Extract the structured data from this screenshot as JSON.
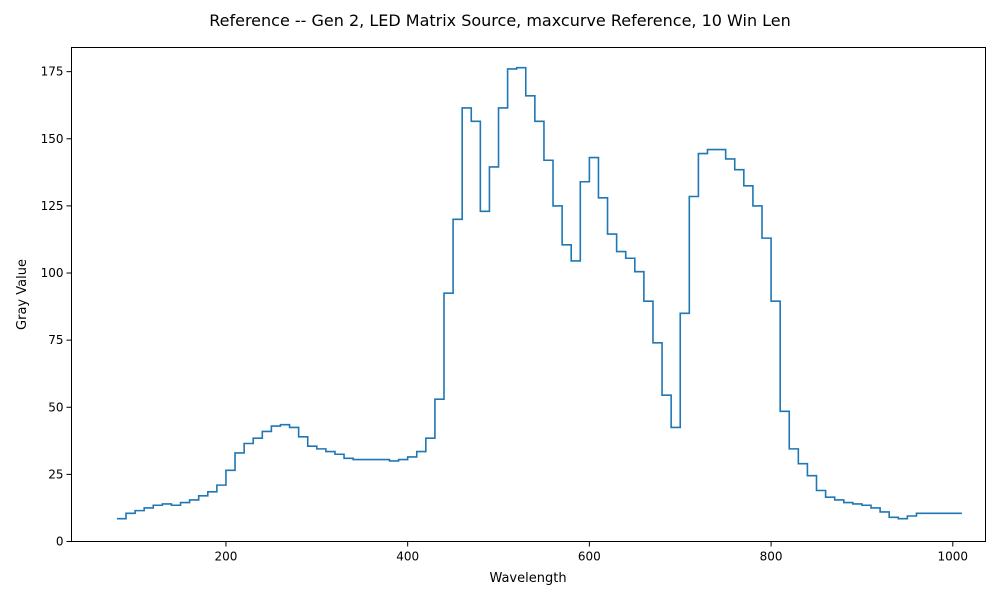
{
  "chart_data": {
    "type": "line",
    "step": "post",
    "title": "Reference -- Gen 2, LED Matrix Source, maxcurve Reference, 10 Win Len",
    "xlabel": "Wavelength",
    "ylabel": "Gray Value",
    "xlim": [
      30,
      1036
    ],
    "ylim": [
      0,
      184
    ],
    "xticks": [
      200,
      400,
      600,
      800,
      1000
    ],
    "yticks": [
      0,
      25,
      50,
      75,
      100,
      125,
      150,
      175
    ],
    "grid": false,
    "series_color": "#1f77b4",
    "series": [
      {
        "x": [
          80,
          90,
          100,
          110,
          120,
          130,
          140,
          150,
          160,
          170,
          180,
          190,
          200,
          210,
          220,
          230,
          240,
          250,
          260,
          270,
          280,
          290,
          300,
          310,
          320,
          330,
          340,
          350,
          360,
          370,
          380,
          390,
          400,
          410,
          420,
          430,
          440,
          450,
          460,
          470,
          480,
          490,
          500,
          510,
          520,
          530,
          540,
          550,
          560,
          570,
          580,
          590,
          600,
          610,
          620,
          630,
          640,
          650,
          660,
          670,
          680,
          690,
          700,
          710,
          720,
          730,
          740,
          750,
          760,
          770,
          780,
          790,
          800,
          810,
          820,
          830,
          840,
          850,
          860,
          870,
          880,
          890,
          900,
          910,
          920,
          930,
          940,
          950,
          960,
          970,
          980,
          990,
          1000,
          1010
        ],
        "values": [
          8.5,
          10.5,
          11.5,
          12.5,
          13.5,
          14,
          13.5,
          14.5,
          15.5,
          17,
          18.5,
          21,
          26.5,
          33,
          36.5,
          38.5,
          41,
          43,
          43.5,
          42.5,
          39,
          35.5,
          34.5,
          33.5,
          32.5,
          31,
          30.5,
          30.5,
          30.5,
          30.5,
          30,
          30.5,
          31.5,
          33.5,
          38.5,
          53,
          92.5,
          120,
          161.5,
          156.5,
          123,
          139.5,
          161.5,
          176,
          176.5,
          166,
          156.5,
          142,
          125,
          110.5,
          104.5,
          134,
          143,
          128,
          114.5,
          108,
          105.5,
          100.5,
          89.5,
          74,
          54.5,
          42.5,
          85,
          128.5,
          144.5,
          146,
          146,
          142.5,
          138.5,
          132.5,
          125,
          113,
          89.5,
          48.5,
          34.5,
          29,
          24.5,
          19,
          16.5,
          15.5,
          14.5,
          14,
          13.5,
          12.5,
          11,
          9,
          8.5,
          9.5,
          10.5,
          10.5,
          10.5,
          10.5,
          10.5,
          10.5
        ]
      }
    ]
  }
}
